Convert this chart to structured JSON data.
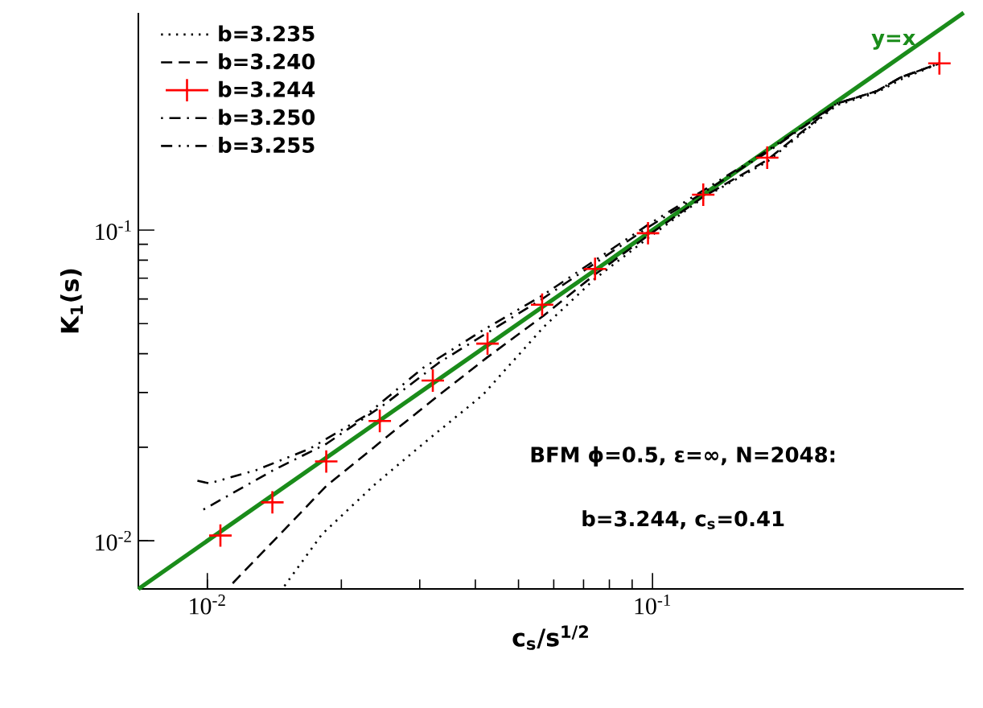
{
  "chart_data": {
    "type": "line",
    "xlabel": "c$_{s}$/s$^{1/2}$",
    "ylabel": "K$_{1}$(s)",
    "log": "xy",
    "legend": "top left",
    "xlim": [
      0.007,
      0.5
    ],
    "ylim": [
      0.007,
      0.5
    ],
    "xticks": [
      {
        "value": 0.01,
        "label": "10$^{-2}$"
      },
      {
        "value": 0.1,
        "label": "10$^{-1}$"
      }
    ],
    "yticks": [
      {
        "value": 0.01,
        "label": "10$^{-2}$"
      },
      {
        "value": 0.1,
        "label": "10$^{-1}$"
      }
    ],
    "series": [
      {
        "color": "#1a8c1a",
        "line_style": "solid",
        "x": [
          0.007,
          0.5
        ],
        "values": [
          0.007,
          0.5
        ]
      },
      {
        "name": "b=3.235",
        "color": "#000000",
        "line_style": "dotted",
        "x": [
          0.0149,
          0.0181,
          0.0238,
          0.0305,
          0.0415,
          0.0569,
          0.0743,
          0.0977,
          0.13,
          0.181,
          0.259,
          0.319,
          0.361,
          0.441
        ],
        "values": [
          0.00715,
          0.0105,
          0.0152,
          0.0205,
          0.0294,
          0.0487,
          0.0698,
          0.0942,
          0.127,
          0.166,
          0.252,
          0.277,
          0.305,
          0.344
        ]
      },
      {
        "name": "b=3.240",
        "color": "#000000",
        "line_style": "dashed",
        "x": [
          0.0114,
          0.0141,
          0.0185,
          0.0252,
          0.0331,
          0.0426,
          0.0569,
          0.0743,
          0.0977,
          0.13,
          0.181,
          0.259,
          0.319,
          0.361,
          0.441
        ],
        "values": [
          0.0073,
          0.01,
          0.015,
          0.0215,
          0.0294,
          0.039,
          0.053,
          0.072,
          0.096,
          0.128,
          0.168,
          0.255,
          0.28,
          0.31,
          0.344
        ]
      },
      {
        "name": "b=3.244",
        "type": "scatter",
        "color": "#ff0000",
        "marker": "cross",
        "x": [
          0.0107,
          0.014,
          0.0185,
          0.0244,
          0.0321,
          0.0426,
          0.0565,
          0.0743,
          0.0977,
          0.13,
          0.181,
          0.441
        ],
        "values": [
          0.0104,
          0.0133,
          0.018,
          0.0243,
          0.0328,
          0.0431,
          0.0575,
          0.075,
          0.0977,
          0.13,
          0.171,
          0.344
        ]
      },
      {
        "name": "b=3.250",
        "color": "#000000",
        "line_style": "dashdot",
        "x": [
          0.0098,
          0.0141,
          0.0185,
          0.0252,
          0.0331,
          0.0569,
          0.0977,
          0.181,
          0.259,
          0.319,
          0.361,
          0.441
        ],
        "values": [
          0.0126,
          0.0169,
          0.0205,
          0.0277,
          0.0374,
          0.0604,
          0.102,
          0.178,
          0.255,
          0.28,
          0.31,
          0.344
        ]
      },
      {
        "name": "b=3.255",
        "color": "#000000",
        "line_style": "dashdotdot",
        "x": [
          0.0095,
          0.0101,
          0.0129,
          0.017,
          0.0226,
          0.0305,
          0.0415,
          0.0569,
          0.0977,
          0.181,
          0.259,
          0.319,
          0.361,
          0.441
        ],
        "values": [
          0.0156,
          0.0153,
          0.0169,
          0.0198,
          0.0252,
          0.036,
          0.0475,
          0.0619,
          0.104,
          0.18,
          0.255,
          0.28,
          0.31,
          0.344
        ]
      }
    ],
    "annotations": [
      "y=x",
      "BFM ϕ=0.5, ε=∞, N=2048:",
      "b=3.244, c$_{s}$=0.41"
    ]
  }
}
